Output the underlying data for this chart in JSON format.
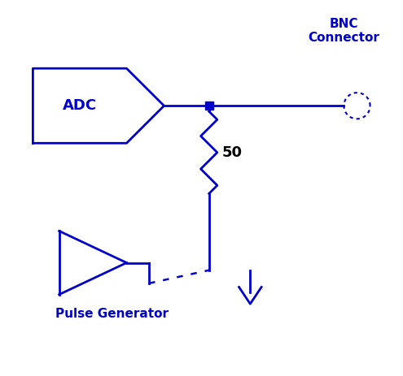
{
  "color": "#0000CC",
  "bg_color": "#FFFFFF",
  "adc_label": "ADC",
  "bnc_label": "BNC\nConnector",
  "resistor_label": "50",
  "pulse_label": "Pulse Generator",
  "figsize": [
    4.95,
    4.63
  ],
  "dpi": 100,
  "xlim": [
    0,
    10
  ],
  "ylim": [
    0,
    10
  ]
}
